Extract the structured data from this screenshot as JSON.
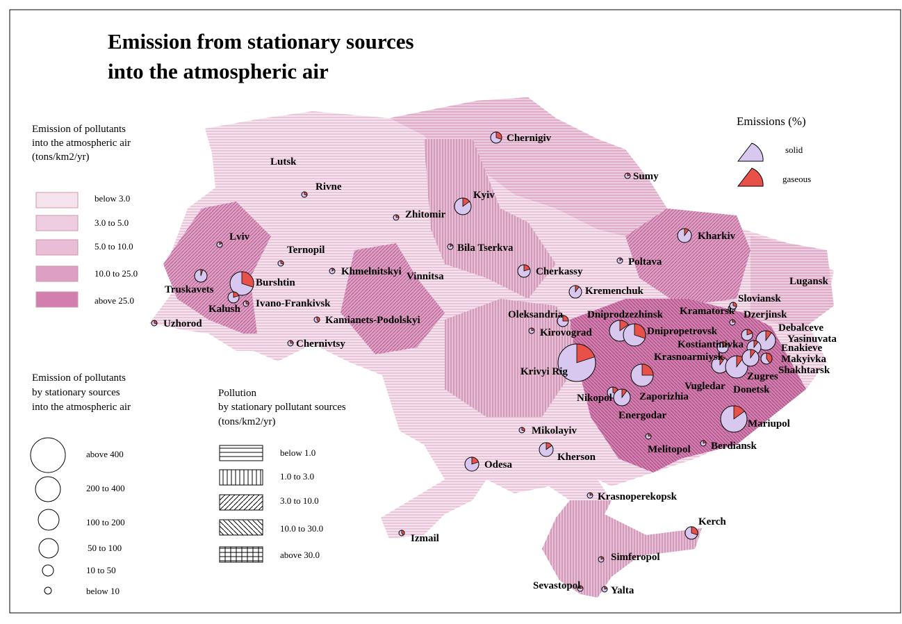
{
  "title": [
    "Emission from stationary sources",
    "into the atmospheric air"
  ],
  "density_legend": {
    "title": [
      "Emission of pollutants",
      "into the atmospheric air",
      "(tons/km2/yr)"
    ],
    "classes": [
      "below 3.0",
      "3.0 to 5.0",
      "5.0 to 10.0",
      "10.0 to 25.0",
      "above 25.0"
    ]
  },
  "size_legend": {
    "title": [
      "Emission of pollutants",
      "by stationary sources",
      "into the atmospheric air"
    ],
    "classes": [
      "above 400",
      "200 to 400",
      "100 to 200",
      "50 to 100",
      "10 to 50",
      "below 10"
    ]
  },
  "pattern_legend": {
    "title": [
      "Pollution",
      "by stationary pollutant sources",
      "(tons/km2/yr)"
    ],
    "classes": [
      "below 1.0",
      "1.0 to 3.0",
      "3.0 to 10.0",
      "10.0 to 30.0",
      "above 30.0"
    ]
  },
  "share_legend": {
    "title": "Emissions (%)",
    "solid": "solid",
    "gaseous": "gaseous"
  },
  "cities": [
    {
      "name": "Chernigiv",
      "gaseous": 30
    },
    {
      "name": "Lutsk"
    },
    {
      "name": "Rivne",
      "gaseous": 30
    },
    {
      "name": "Sumy",
      "gaseous": 20
    },
    {
      "name": "Kyiv",
      "gaseous": 15
    },
    {
      "name": "Zhitomir",
      "gaseous": 25
    },
    {
      "name": "Lviv",
      "gaseous": 15
    },
    {
      "name": "Ternopil",
      "gaseous": 30
    },
    {
      "name": "Bila Tserkva",
      "gaseous": 15
    },
    {
      "name": "Kharkiv",
      "gaseous": 10
    },
    {
      "name": "Poltava",
      "gaseous": 15
    },
    {
      "name": "Khmelnitskyi",
      "gaseous": 15
    },
    {
      "name": "Vinnitsa"
    },
    {
      "name": "Truskavets",
      "gaseous": 5
    },
    {
      "name": "Burshtin",
      "gaseous": 30
    },
    {
      "name": "Cherkassy",
      "gaseous": 20
    },
    {
      "name": "Lugansk"
    },
    {
      "name": "Kremenchuk",
      "gaseous": 10
    },
    {
      "name": "Kalush",
      "gaseous": 20
    },
    {
      "name": "Ivano-Frankivsk",
      "gaseous": 30
    },
    {
      "name": "Oleksandria",
      "gaseous": 25
    },
    {
      "name": "Dniprodzezhinsk",
      "gaseous": 15
    },
    {
      "name": "Kramatorsk",
      "gaseous": 20
    },
    {
      "name": "Sloviansk",
      "gaseous": 30
    },
    {
      "name": "Dzerjinsk",
      "gaseous": 20
    },
    {
      "name": "Uzhorod",
      "gaseous": 30
    },
    {
      "name": "Kamianets-Podolskyi",
      "gaseous": 40
    },
    {
      "name": "Kirovograd",
      "gaseous": 20
    },
    {
      "name": "Dnipropetrovsk",
      "gaseous": 30
    },
    {
      "name": "Debalceve",
      "gaseous": 10
    },
    {
      "name": "Yasinuvata",
      "gaseous": 20
    },
    {
      "name": "Kostiantinivka",
      "gaseous": 15
    },
    {
      "name": "Chernivtsy",
      "gaseous": 25
    },
    {
      "name": "Enakieve",
      "gaseous": 10
    },
    {
      "name": "Krasnoarmiysk",
      "gaseous": 10
    },
    {
      "name": "Makyivka",
      "gaseous": 40
    },
    {
      "name": "Krivyi Rig",
      "gaseous": 20
    },
    {
      "name": "Zugres",
      "gaseous": 10
    },
    {
      "name": "Shakhtarsk",
      "gaseous": 10
    },
    {
      "name": "Vugledar"
    },
    {
      "name": "Donetsk"
    },
    {
      "name": "Nikopol",
      "gaseous": 30
    },
    {
      "name": "Zaporizhia",
      "gaseous": 25
    },
    {
      "name": "Energodar",
      "gaseous": 10
    },
    {
      "name": "Mariupol",
      "gaseous": 15
    },
    {
      "name": "Mikolayiv",
      "gaseous": 30
    },
    {
      "name": "Melitopol",
      "gaseous": 20
    },
    {
      "name": "Berdiansk",
      "gaseous": 20
    },
    {
      "name": "Kherson",
      "gaseous": 15
    },
    {
      "name": "Odesa",
      "gaseous": 20
    },
    {
      "name": "Krasnoperekopsk",
      "gaseous": 20
    },
    {
      "name": "Kerch",
      "gaseous": 30
    },
    {
      "name": "Izmail",
      "gaseous": 40
    },
    {
      "name": "Simferopol",
      "gaseous": 20
    },
    {
      "name": "Sevastopol",
      "gaseous": 20
    },
    {
      "name": "Yalta",
      "gaseous": 20
    }
  ]
}
